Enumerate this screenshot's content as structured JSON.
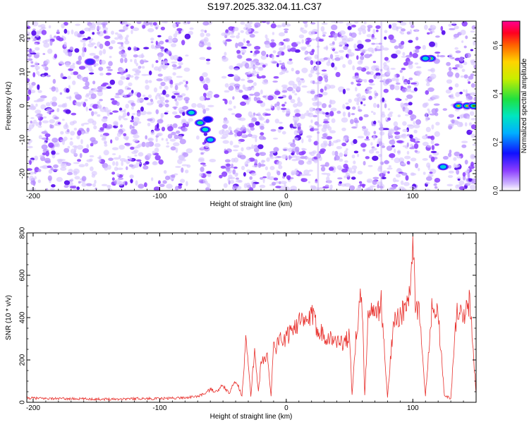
{
  "title": "S197.2025.332.04.11.C37",
  "chart_data": [
    {
      "type": "heatmap",
      "xlabel": "Height of straight line (km)",
      "ylabel": "Frequency (Hz)",
      "xlim": [
        -205,
        150
      ],
      "ylim": [
        -25,
        25
      ],
      "xticks": [
        -200,
        -100,
        0,
        100
      ],
      "yticks": [
        -20,
        -10,
        0,
        10,
        20
      ],
      "colorbar": {
        "label": "Normalized spectral amplitude",
        "range": [
          0,
          0.7
        ],
        "ticks": [
          0.0,
          0.2,
          0.4,
          0.6
        ],
        "tick_labels": [
          "0.0",
          "0.2",
          "0.4",
          "0.6"
        ]
      },
      "strong_features": [
        {
          "x": -75,
          "y": -2,
          "value": 0.3
        },
        {
          "x": -68,
          "y": -5,
          "value": 0.35
        },
        {
          "x": -64,
          "y": -7,
          "value": 0.32
        },
        {
          "x": -60,
          "y": -10,
          "value": 0.28
        },
        {
          "x": -62,
          "y": -4,
          "value": 0.15
        },
        {
          "x": 114,
          "y": 14,
          "value": 0.5
        },
        {
          "x": 110,
          "y": 14,
          "value": 0.3
        },
        {
          "x": 124,
          "y": -18,
          "value": 0.28
        },
        {
          "x": 136,
          "y": 0,
          "value": 0.55
        },
        {
          "x": 143,
          "y": 0,
          "value": 0.55
        },
        {
          "x": 148,
          "y": 0,
          "value": 0.45
        },
        {
          "x": -155,
          "y": 13,
          "value": 0.12
        }
      ],
      "gaps": [
        [
          -77,
          -68
        ],
        [
          -60,
          -50
        ],
        [
          105,
          109
        ],
        [
          120,
          128
        ]
      ]
    },
    {
      "type": "line",
      "xlabel": "Height of straight line (km)",
      "ylabel": "SNR (10 * v/v)",
      "xlim": [
        -205,
        150
      ],
      "ylim": [
        0,
        800
      ],
      "xticks": [
        -200,
        -100,
        0,
        100
      ],
      "yticks": [
        0,
        200,
        400,
        600,
        800
      ],
      "color": "#e8302c",
      "series": [
        {
          "name": "SNR",
          "x": [
            -205,
            -190,
            -175,
            -160,
            -145,
            -130,
            -115,
            -100,
            -90,
            -80,
            -70,
            -65,
            -60,
            -55,
            -50,
            -45,
            -40,
            -35,
            -32,
            -30,
            -28,
            -25,
            -22,
            -20,
            -18,
            -15,
            -12,
            -10,
            -8,
            -5,
            -2,
            0,
            5,
            10,
            15,
            20,
            25,
            30,
            35,
            40,
            45,
            50,
            52,
            55,
            58,
            60,
            62,
            65,
            70,
            75,
            80,
            85,
            90,
            95,
            98,
            100,
            102,
            105,
            110,
            115,
            120,
            125,
            130,
            135,
            140,
            145,
            150
          ],
          "values": [
            20,
            18,
            17,
            16,
            15,
            16,
            18,
            17,
            20,
            22,
            28,
            40,
            60,
            50,
            80,
            40,
            110,
            30,
            300,
            170,
            30,
            250,
            50,
            180,
            200,
            220,
            30,
            300,
            250,
            320,
            280,
            300,
            360,
            380,
            370,
            410,
            350,
            320,
            300,
            290,
            280,
            310,
            30,
            300,
            480,
            460,
            30,
            450,
            400,
            470,
            20,
            410,
            400,
            460,
            500,
            800,
            420,
            450,
            30,
            450,
            420,
            30,
            20,
            460,
            380,
            480,
            40
          ]
        }
      ]
    }
  ]
}
